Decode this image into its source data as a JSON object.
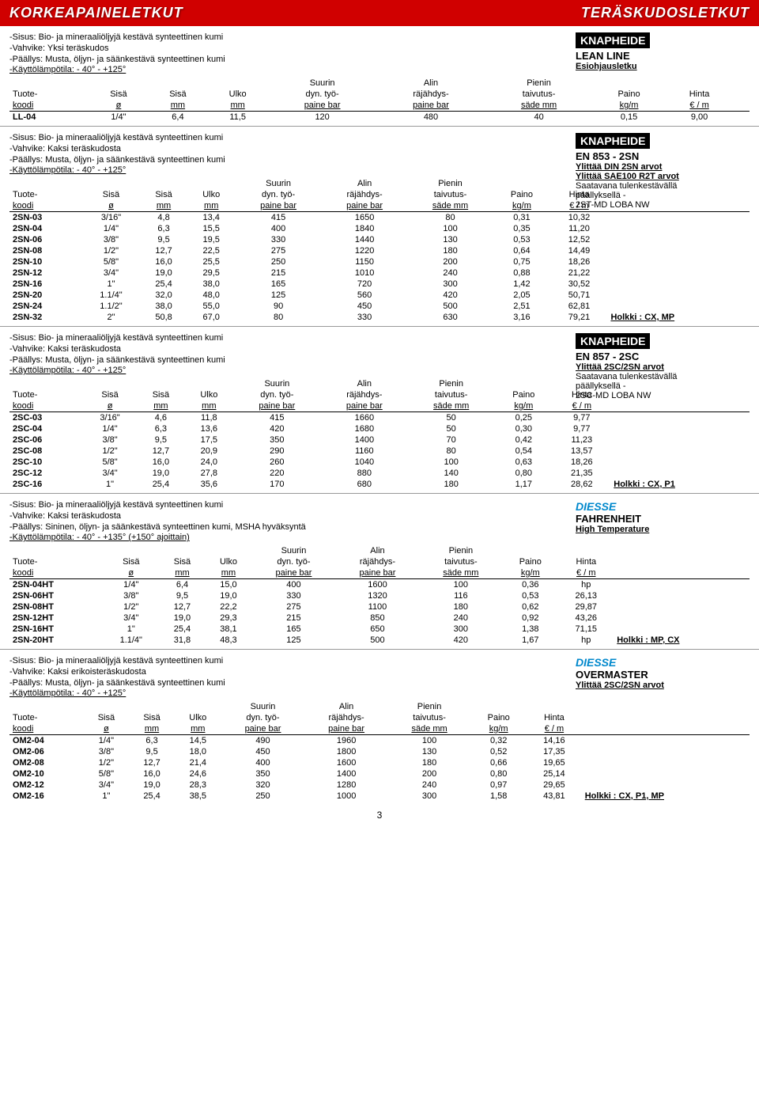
{
  "header": {
    "left": "KORKEAPAINELETKUT",
    "right": "TERÄSKUDOSLETKUT"
  },
  "tableHeaders": {
    "col0a": "Tuote-",
    "col0b": "koodi",
    "col1a": "Sisä",
    "col1b": "ø",
    "col2a": "Sisä",
    "col2b": "mm",
    "col3a": "Ulko",
    "col3b": "mm",
    "col4a": "Suurin",
    "col4b": "dyn. työ-",
    "col4c": "paine bar",
    "col5a": "Alin",
    "col5b": "räjähdys-",
    "col5c": "paine bar",
    "col6a": "Pienin",
    "col6b": "taivutus-",
    "col6c": "säde mm",
    "col7a": "Paino",
    "col7b": "kg/m",
    "col8a": "Hinta",
    "col8b": "€ / m"
  },
  "sections": [
    {
      "desc": [
        "-Sisus: Bio- ja mineraaliöljyjä kestävä synteettinen kumi",
        "-Vahvike: Yksi teräskudos",
        "-Päällys: Musta, öljyn- ja säänkestävä synteettinen kumi"
      ],
      "descU": "-Käyttölämpötila: - 40° - +125°",
      "brand": "KNAPHEIDE",
      "brandBox": true,
      "model": "LEAN LINE",
      "modelU": "Esiohjausletku",
      "extra": [],
      "rows": [
        [
          "LL-04",
          "1/4\"",
          "6,4",
          "11,5",
          "120",
          "480",
          "40",
          "0,15",
          "9,00",
          ""
        ]
      ],
      "holkki": ""
    },
    {
      "desc": [
        "-Sisus: Bio- ja mineraaliöljyjä kestävä synteettinen kumi",
        "-Vahvike: Kaksi teräskudosta",
        "-Päällys: Musta, öljyn- ja säänkestävä synteettinen kumi"
      ],
      "descU": "-Käyttölämpötila: - 40° - +125°",
      "brand": "KNAPHEIDE",
      "brandBox": true,
      "model": "EN 853 - 2SN",
      "modelU": "",
      "extra": [
        "Ylittää DIN 2SN arvot",
        "Ylittää SAE100 R2T arvot",
        "Saatavana tulenkestävällä",
        "päällyksellä  -",
        "2ST-MD LOBA NW"
      ],
      "rows": [
        [
          "2SN-03",
          "3/16\"",
          "4,8",
          "13,4",
          "415",
          "1650",
          "80",
          "0,31",
          "10,32",
          ""
        ],
        [
          "2SN-04",
          "1/4\"",
          "6,3",
          "15,5",
          "400",
          "1840",
          "100",
          "0,35",
          "11,20",
          ""
        ],
        [
          "2SN-06",
          "3/8\"",
          "9,5",
          "19,5",
          "330",
          "1440",
          "130",
          "0,53",
          "12,52",
          ""
        ],
        [
          "2SN-08",
          "1/2\"",
          "12,7",
          "22,5",
          "275",
          "1220",
          "180",
          "0,64",
          "14,49",
          ""
        ],
        [
          "2SN-10",
          "5/8\"",
          "16,0",
          "25,5",
          "250",
          "1150",
          "200",
          "0,75",
          "18,26",
          ""
        ],
        [
          "2SN-12",
          "3/4\"",
          "19,0",
          "29,5",
          "215",
          "1010",
          "240",
          "0,88",
          "21,22",
          ""
        ],
        [
          "2SN-16",
          "1\"",
          "25,4",
          "38,0",
          "165",
          "720",
          "300",
          "1,42",
          "30,52",
          ""
        ],
        [
          "2SN-20",
          "1.1/4\"",
          "32,0",
          "48,0",
          "125",
          "560",
          "420",
          "2,05",
          "50,71",
          ""
        ],
        [
          "2SN-24",
          "1.1/2\"",
          "38,0",
          "55,0",
          "90",
          "450",
          "500",
          "2,51",
          "62,81",
          ""
        ],
        [
          "2SN-32",
          "2\"",
          "50,8",
          "67,0",
          "80",
          "330",
          "630",
          "3,16",
          "79,21",
          "Holkki : CX, MP"
        ]
      ]
    },
    {
      "desc": [
        "-Sisus: Bio- ja mineraaliöljyjä kestävä synteettinen kumi",
        "-Vahvike: Kaksi teräskudosta",
        "-Päällys: Musta, öljyn- ja säänkestävä synteettinen kumi"
      ],
      "descU": "-Käyttölämpötila: - 40° - +125°",
      "brand": "KNAPHEIDE",
      "brandBox": true,
      "model": "EN 857 - 2SC",
      "modelU": "Ylittää 2SC/2SN arvot",
      "extra": [
        "Saatavana tulenkestävällä",
        "päällyksellä  -",
        "2SC-MD LOBA NW"
      ],
      "rows": [
        [
          "2SC-03",
          "3/16\"",
          "4,6",
          "11,8",
          "415",
          "1660",
          "50",
          "0,25",
          "9,77",
          ""
        ],
        [
          "2SC-04",
          "1/4\"",
          "6,3",
          "13,6",
          "420",
          "1680",
          "50",
          "0,30",
          "9,77",
          ""
        ],
        [
          "2SC-06",
          "3/8\"",
          "9,5",
          "17,5",
          "350",
          "1400",
          "70",
          "0,42",
          "11,23",
          ""
        ],
        [
          "2SC-08",
          "1/2\"",
          "12,7",
          "20,9",
          "290",
          "1160",
          "80",
          "0,54",
          "13,57",
          ""
        ],
        [
          "2SC-10",
          "5/8\"",
          "16,0",
          "24,0",
          "260",
          "1040",
          "100",
          "0,63",
          "18,26",
          ""
        ],
        [
          "2SC-12",
          "3/4\"",
          "19,0",
          "27,8",
          "220",
          "880",
          "140",
          "0,80",
          "21,35",
          ""
        ],
        [
          "2SC-16",
          "1\"",
          "25,4",
          "35,6",
          "170",
          "680",
          "180",
          "1,17",
          "28,62",
          "Holkki : CX, P1"
        ]
      ]
    },
    {
      "desc": [
        "-Sisus: Bio- ja mineraaliöljyjä kestävä synteettinen kumi",
        "-Vahvike: Kaksi teräskudosta",
        "-Päällys: Sininen, öljyn- ja säänkestävä synteettinen kumi, MSHA hyväksyntä"
      ],
      "descU": "-Käyttölämpötila: - 40° - +135° (+150° ajoittain)",
      "brand": "DIESSE",
      "brandBox": false,
      "model": "FAHRENHEIT",
      "modelU": "High Temperature",
      "extra": [],
      "rows": [
        [
          "2SN-04HT",
          "1/4\"",
          "6,4",
          "15,0",
          "400",
          "1600",
          "100",
          "0,36",
          "hp",
          ""
        ],
        [
          "2SN-06HT",
          "3/8\"",
          "9,5",
          "19,0",
          "330",
          "1320",
          "116",
          "0,53",
          "26,13",
          ""
        ],
        [
          "2SN-08HT",
          "1/2\"",
          "12,7",
          "22,2",
          "275",
          "1100",
          "180",
          "0,62",
          "29,87",
          ""
        ],
        [
          "2SN-12HT",
          "3/4\"",
          "19,0",
          "29,3",
          "215",
          "850",
          "240",
          "0,92",
          "43,26",
          ""
        ],
        [
          "2SN-16HT",
          "1\"",
          "25,4",
          "38,1",
          "165",
          "650",
          "300",
          "1,38",
          "71,15",
          ""
        ],
        [
          "2SN-20HT",
          "1.1/4\"",
          "31,8",
          "48,3",
          "125",
          "500",
          "420",
          "1,67",
          "hp",
          "Holkki : MP, CX"
        ]
      ]
    },
    {
      "desc": [
        "-Sisus: Bio- ja mineraaliöljyjä kestävä synteettinen kumi",
        "-Vahvike: Kaksi erikoisteräskudosta",
        "-Päällys: Musta, öljyn- ja säänkestävä synteettinen kumi"
      ],
      "descU": "-Käyttölämpötila: - 40° - +125°",
      "brand": "DIESSE",
      "brandBox": false,
      "model": "OVERMASTER",
      "modelU": "Ylittää 2SC/2SN arvot",
      "extra": [],
      "rows": [
        [
          "OM2-04",
          "1/4\"",
          "6,3",
          "14,5",
          "490",
          "1960",
          "100",
          "0,32",
          "14,16",
          ""
        ],
        [
          "OM2-06",
          "3/8\"",
          "9,5",
          "18,0",
          "450",
          "1800",
          "130",
          "0,52",
          "17,35",
          ""
        ],
        [
          "OM2-08",
          "1/2\"",
          "12,7",
          "21,4",
          "400",
          "1600",
          "180",
          "0,66",
          "19,65",
          ""
        ],
        [
          "OM2-10",
          "5/8\"",
          "16,0",
          "24,6",
          "350",
          "1400",
          "200",
          "0,80",
          "25,14",
          ""
        ],
        [
          "OM2-12",
          "3/4\"",
          "19,0",
          "28,3",
          "320",
          "1280",
          "240",
          "0,97",
          "29,65",
          ""
        ],
        [
          "OM2-16",
          "1\"",
          "25,4",
          "38,5",
          "250",
          "1000",
          "300",
          "1,58",
          "43,81",
          "Holkki : CX, P1, MP"
        ]
      ]
    }
  ],
  "pageNum": "3"
}
